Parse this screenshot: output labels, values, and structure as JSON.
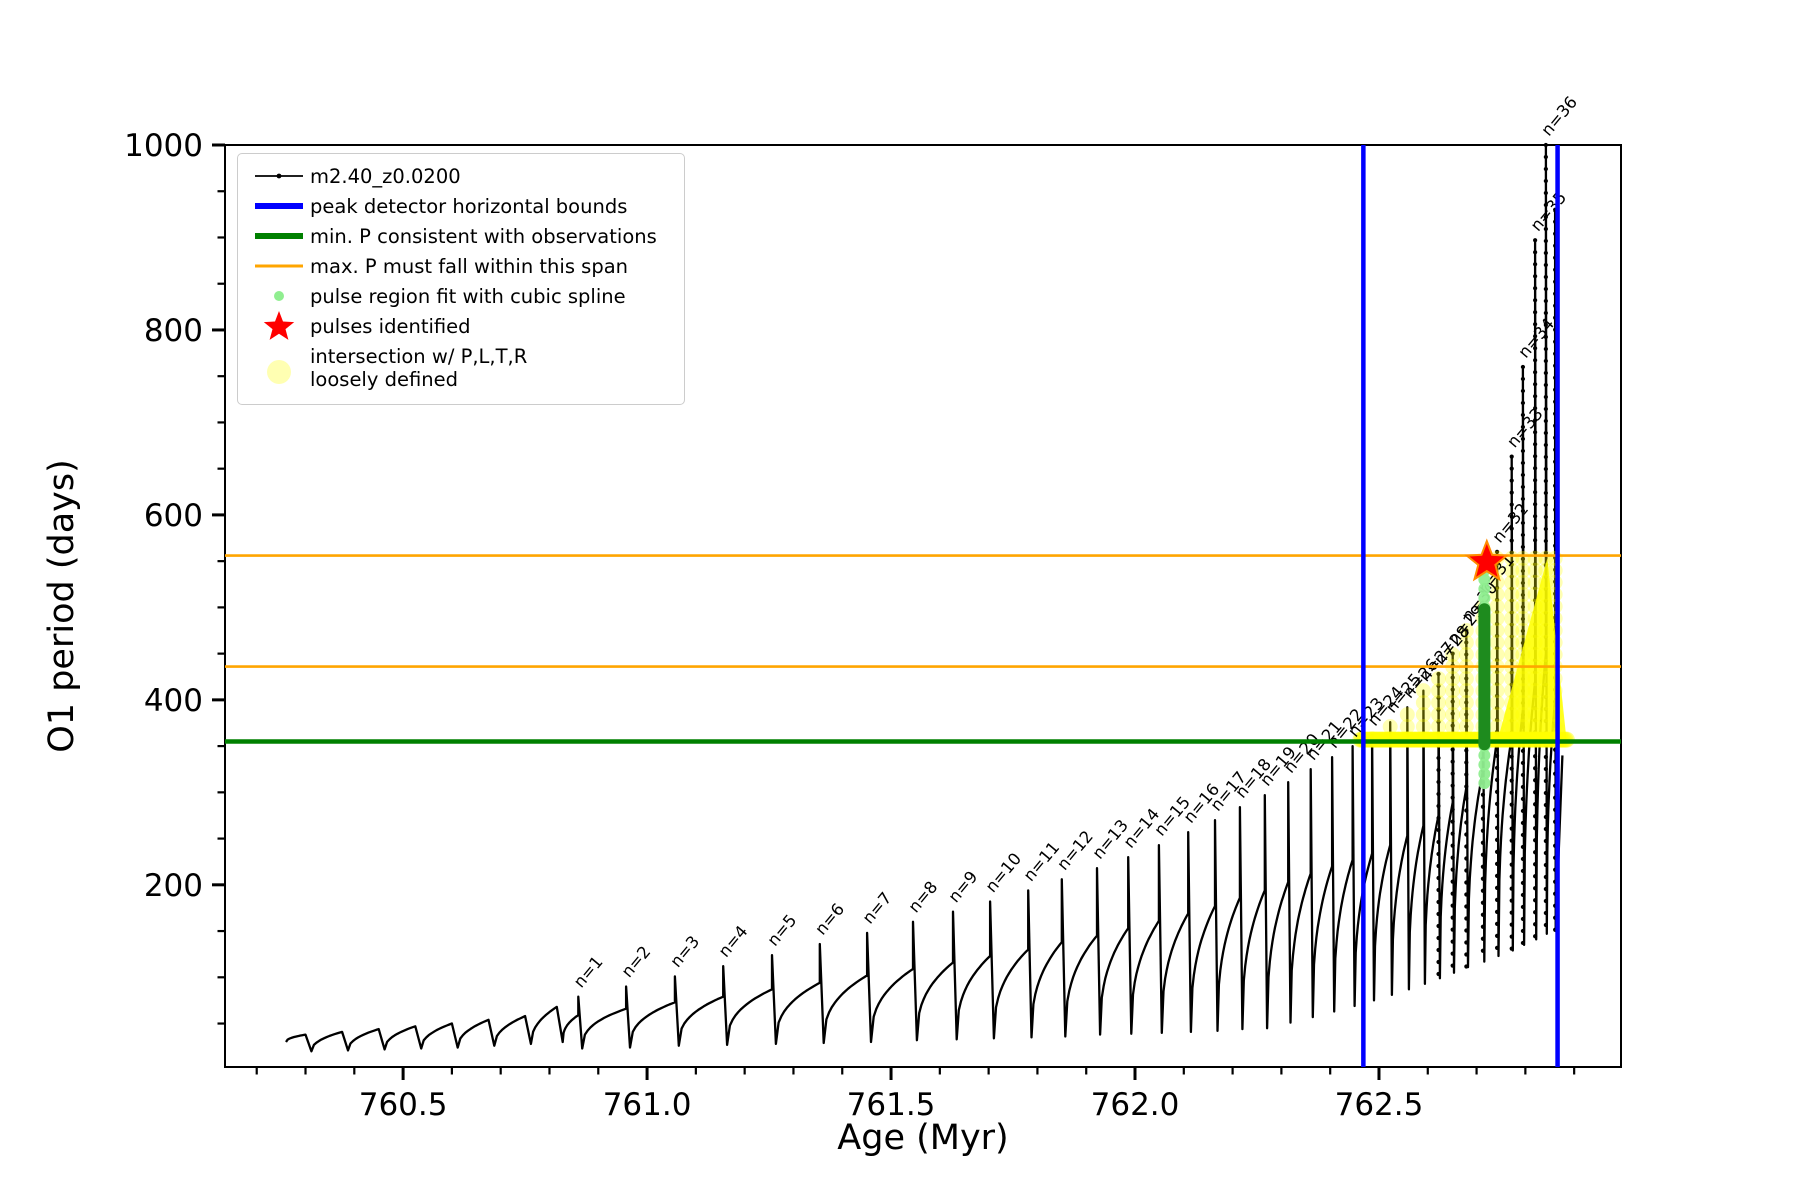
{
  "figure": {
    "xlabel": "Age (Myr)",
    "ylabel": "O1 period (days)"
  },
  "legend": {
    "items": [
      {
        "label": "m2.40_z0.0200",
        "type": "line-dot",
        "color": "#000000"
      },
      {
        "label": "peak detector horizontal bounds",
        "type": "thick-line",
        "color": "#0000ff"
      },
      {
        "label": "min. P consistent with observations",
        "type": "thick-line",
        "color": "#008000"
      },
      {
        "label": "max. P must fall within this span",
        "type": "line",
        "color": "#ffa500"
      },
      {
        "label": "pulse region fit with cubic spline",
        "type": "dot",
        "color": "#90ee90"
      },
      {
        "label": "pulses identified",
        "type": "star",
        "color": "#ff0000"
      },
      {
        "label": "intersection w/ P,L,T,R\nloosely defined",
        "type": "big-dot",
        "color": "rgba(255,255,0,0.35)"
      }
    ]
  },
  "chart_data": {
    "type": "line",
    "title": "",
    "xlabel": "Age (Myr)",
    "ylabel": "O1 period (days)",
    "series_name": "m2.40_z0.0200",
    "xlim": [
      760.135,
      762.996
    ],
    "ylim": [
      3,
      1000
    ],
    "x_ticks": [
      {
        "v": 760.5,
        "label": "760.5"
      },
      {
        "v": 761.0,
        "label": "761.0"
      },
      {
        "v": 761.5,
        "label": "761.5"
      },
      {
        "v": 762.0,
        "label": "762.0"
      },
      {
        "v": 762.5,
        "label": "762.5"
      }
    ],
    "y_ticks": [
      {
        "v": 200,
        "label": "200"
      },
      {
        "v": 400,
        "label": "400"
      },
      {
        "v": 600,
        "label": "600"
      },
      {
        "v": 800,
        "label": "800"
      },
      {
        "v": 1000,
        "label": "1000"
      }
    ],
    "x_minor_step": 0.1,
    "y_minor_step": 50,
    "colors": {
      "series": "#000000",
      "peak_detector_bounds": "#0000ff",
      "min_P_line": "#008000",
      "max_P_span": "#ffa500",
      "spline_dots": "#90ee90",
      "spline_dense": "#1e8b1e",
      "pulse_star": "#ff0000",
      "intersection": "#ffff00"
    },
    "peak_detector_bounds_myr": [
      762.468,
      762.866
    ],
    "min_P_days": 355,
    "max_P_span_days": [
      436,
      556
    ],
    "pulses_identified": [
      {
        "age": 762.721,
        "period": 549
      }
    ],
    "spline_region": {
      "age": 762.716,
      "period_min": 310,
      "period_max": 545,
      "dense_min": 352,
      "dense_max": 498
    },
    "intersection_region": {
      "base_row_period": 357,
      "base_row_age_start": 762.462,
      "base_row_age_end": 762.886,
      "base_row_age_step": 0.003,
      "column_period_floor": 358,
      "column_period_cap": 556,
      "triangle": [
        [
          762.744,
          358
        ],
        [
          762.845,
          553
        ],
        [
          762.884,
          358
        ]
      ]
    },
    "pre_pulse_start": {
      "age": 760.26,
      "period": 30
    },
    "pre_pulse_bumps": [
      {
        "age": 760.3,
        "top": 38,
        "min": 20
      },
      {
        "age": 760.375,
        "top": 41,
        "min": 21
      },
      {
        "age": 760.45,
        "top": 44,
        "min": 22
      },
      {
        "age": 760.525,
        "top": 47,
        "min": 23
      },
      {
        "age": 760.6,
        "top": 50,
        "min": 24
      },
      {
        "age": 760.675,
        "top": 54,
        "min": 26
      },
      {
        "age": 760.75,
        "top": 58,
        "min": 28
      },
      {
        "age": 760.815,
        "top": 68,
        "min": 30
      }
    ],
    "pulses": [
      {
        "n": 1,
        "age": 760.859,
        "peak": 79,
        "min": 23,
        "fin": 59
      },
      {
        "n": 2,
        "age": 760.957,
        "peak": 90,
        "min": 24,
        "fin": 66
      },
      {
        "n": 3,
        "age": 761.057,
        "peak": 101,
        "min": 26,
        "fin": 73
      },
      {
        "n": 4,
        "age": 761.156,
        "peak": 112,
        "min": 27,
        "fin": 79
      },
      {
        "n": 5,
        "age": 761.256,
        "peak": 124,
        "min": 28,
        "fin": 87
      },
      {
        "n": 6,
        "age": 761.354,
        "peak": 136,
        "min": 29,
        "fin": 94
      },
      {
        "n": 7,
        "age": 761.451,
        "peak": 148,
        "min": 30,
        "fin": 102
      },
      {
        "n": 8,
        "age": 761.545,
        "peak": 160,
        "min": 32,
        "fin": 109
      },
      {
        "n": 9,
        "age": 761.627,
        "peak": 171,
        "min": 33,
        "fin": 116
      },
      {
        "n": 10,
        "age": 761.703,
        "peak": 182,
        "min": 34,
        "fin": 123
      },
      {
        "n": 11,
        "age": 761.781,
        "peak": 194,
        "min": 35,
        "fin": 130
      },
      {
        "n": 12,
        "age": 761.85,
        "peak": 206,
        "min": 36,
        "fin": 138
      },
      {
        "n": 13,
        "age": 761.922,
        "peak": 218,
        "min": 38,
        "fin": 145
      },
      {
        "n": 14,
        "age": 761.986,
        "peak": 230,
        "min": 39,
        "fin": 153
      },
      {
        "n": 15,
        "age": 762.049,
        "peak": 243,
        "min": 40,
        "fin": 161
      },
      {
        "n": 16,
        "age": 762.109,
        "peak": 257,
        "min": 41,
        "fin": 169
      },
      {
        "n": 17,
        "age": 762.164,
        "peak": 270,
        "min": 42,
        "fin": 177
      },
      {
        "n": 18,
        "age": 762.215,
        "peak": 284,
        "min": 44,
        "fin": 186
      },
      {
        "n": 19,
        "age": 762.266,
        "peak": 297,
        "min": 45,
        "fin": 194
      },
      {
        "n": 20,
        "age": 762.314,
        "peak": 311,
        "min": 51,
        "fin": 203
      },
      {
        "n": 21,
        "age": 762.36,
        "peak": 325,
        "min": 57,
        "fin": 212
      },
      {
        "n": 22,
        "age": 762.404,
        "peak": 338,
        "min": 63,
        "fin": 220
      },
      {
        "n": 23,
        "age": 762.446,
        "peak": 350,
        "min": 69,
        "fin": 227
      },
      {
        "n": 24,
        "age": 762.486,
        "peak": 362,
        "min": 75,
        "fin": 234
      },
      {
        "n": 25,
        "age": 762.523,
        "peak": 376,
        "min": 81,
        "fin": 243
      },
      {
        "n": 26,
        "age": 762.558,
        "peak": 392,
        "min": 87,
        "fin": 253
      },
      {
        "n": 27,
        "age": 762.591,
        "peak": 410,
        "min": 93,
        "fin": 264
      },
      {
        "n": 28,
        "age": 762.622,
        "peak": 428,
        "min": 99,
        "fin": 275
      },
      {
        "n": 29,
        "age": 762.651,
        "peak": 450,
        "min": 105,
        "fin": 289
      },
      {
        "n": 30,
        "age": 762.679,
        "peak": 475,
        "min": 111,
        "fin": 305
      },
      {
        "n": 31,
        "age": 762.713,
        "peak": 505,
        "min": 117,
        "fin": 323
      },
      {
        "n": 32,
        "age": 762.742,
        "peak": 560,
        "min": 123,
        "fin": 357
      },
      {
        "n": 33,
        "age": 762.772,
        "peak": 663,
        "min": 129,
        "fin": 360
      },
      {
        "n": 34,
        "age": 762.795,
        "peak": 760,
        "min": 135,
        "fin": 390
      },
      {
        "n": 35,
        "age": 762.82,
        "peak": 897,
        "min": 141,
        "fin": 420
      },
      {
        "n": 36,
        "age": 762.842,
        "peak": 1000,
        "min": 147,
        "fin": 450
      },
      {
        "n": 37,
        "age": 762.861,
        "peak": 930,
        "min": 150,
        "fin": 400,
        "unlabeled": true
      }
    ],
    "series_end": {
      "age": 762.876,
      "period": 340
    }
  }
}
